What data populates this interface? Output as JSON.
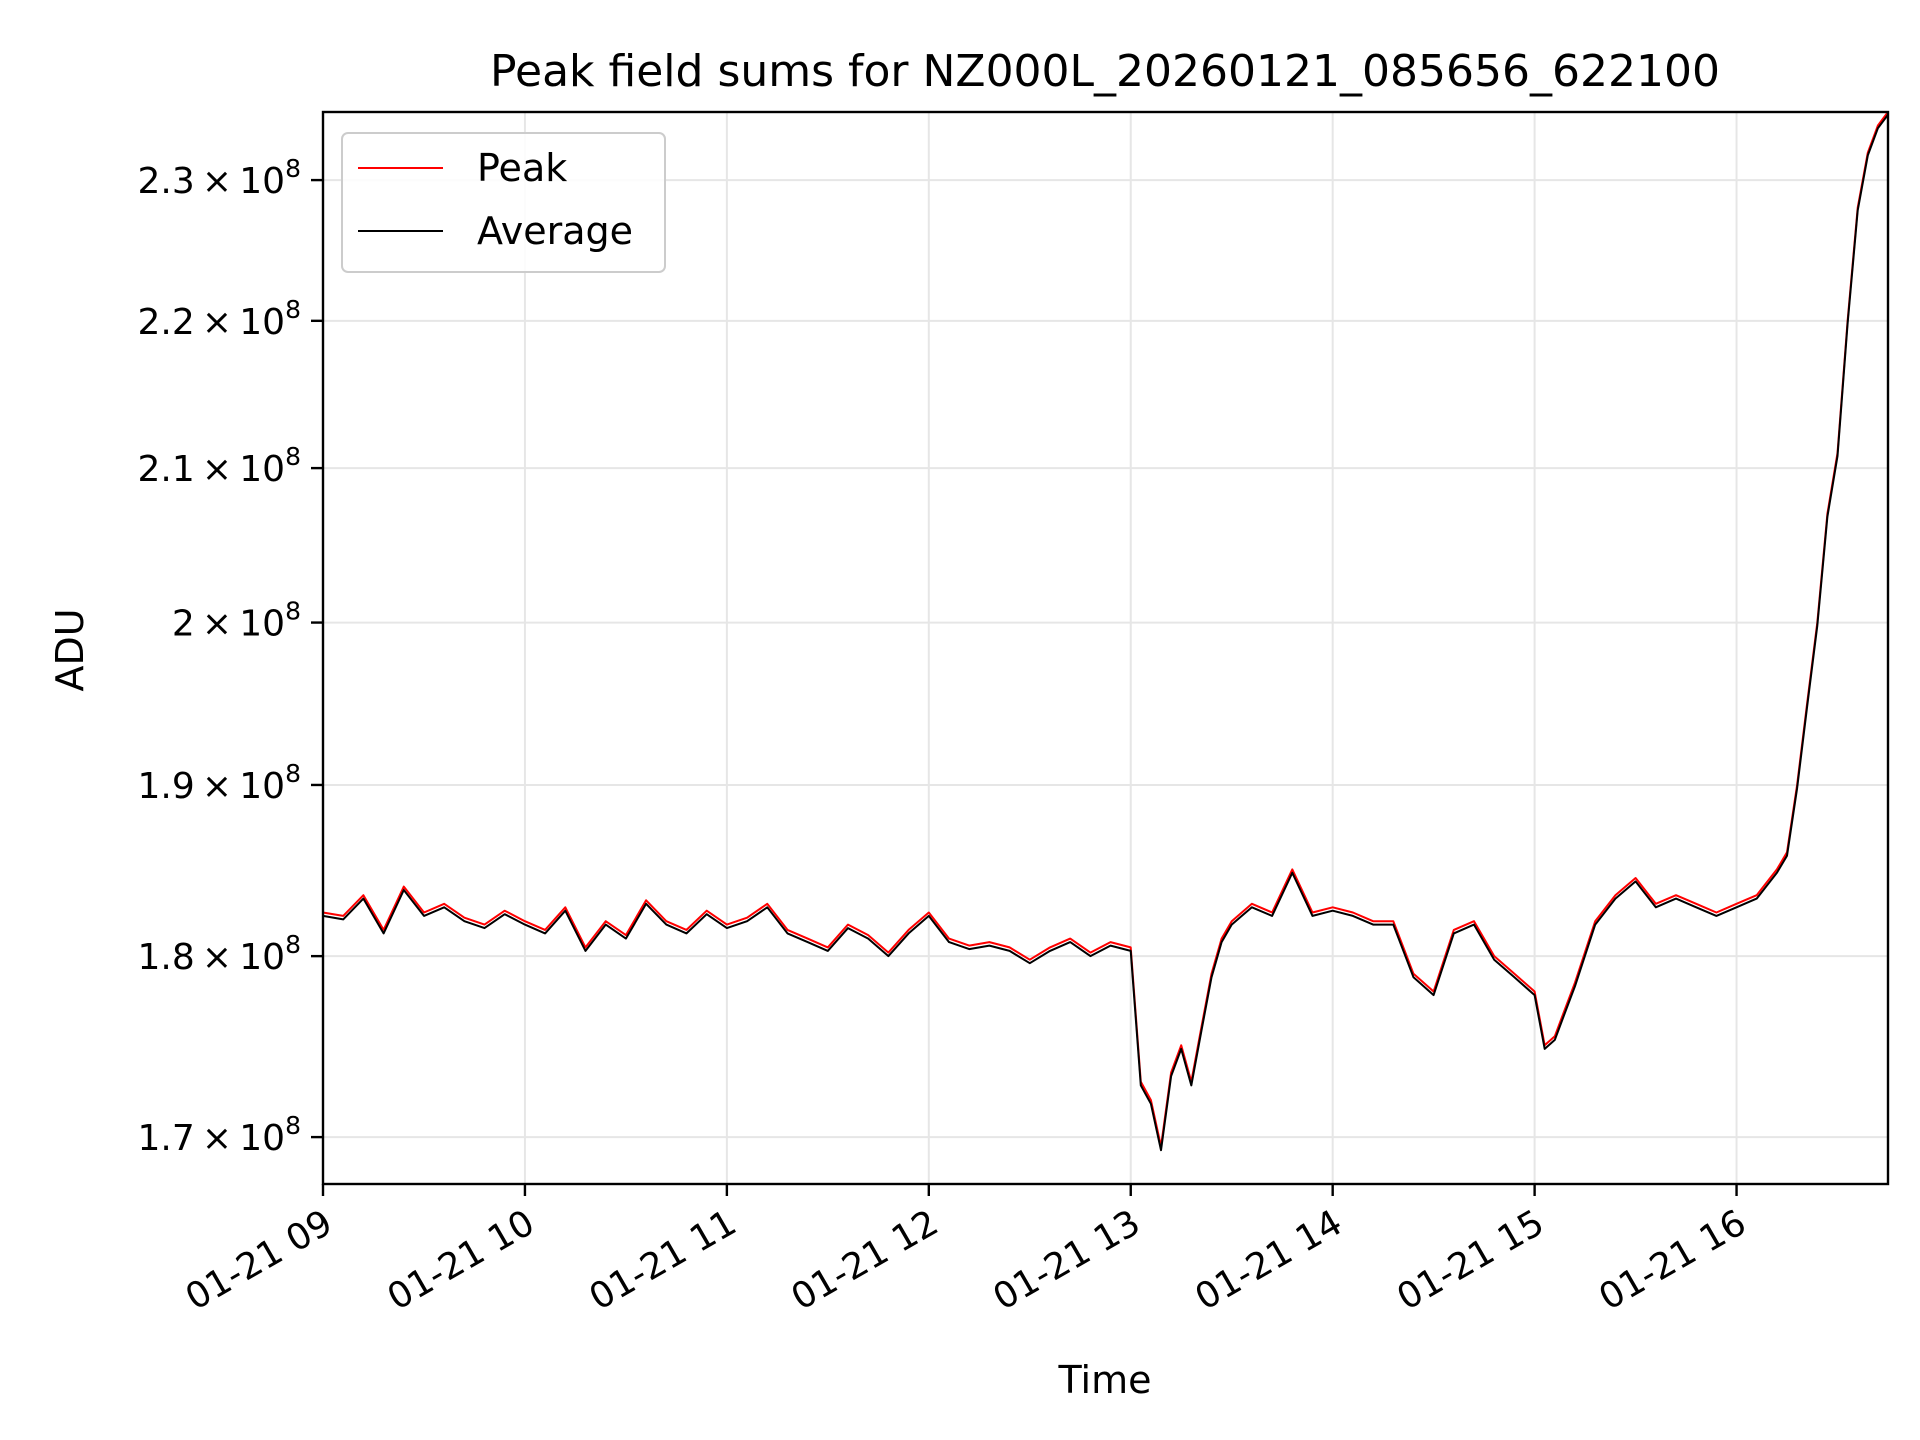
{
  "chart_data": {
    "type": "line",
    "title": "Peak field sums for NZ000L_20260121_085656_622100",
    "xlabel": "Time",
    "ylabel": "ADU",
    "y_scale": "log",
    "x_range": [
      "2026-01-21 09:00",
      "2026-01-21 16:45"
    ],
    "ylim": [
      167500000,
      235000000
    ],
    "x_ticks": [
      {
        "value": "2026-01-21 09:00",
        "label": "01-21 09"
      },
      {
        "value": "2026-01-21 10:00",
        "label": "01-21 10"
      },
      {
        "value": "2026-01-21 11:00",
        "label": "01-21 11"
      },
      {
        "value": "2026-01-21 12:00",
        "label": "01-21 12"
      },
      {
        "value": "2026-01-21 13:00",
        "label": "01-21 13"
      },
      {
        "value": "2026-01-21 14:00",
        "label": "01-21 14"
      },
      {
        "value": "2026-01-21 15:00",
        "label": "01-21 15"
      },
      {
        "value": "2026-01-21 16:00",
        "label": "01-21 16"
      }
    ],
    "y_ticks": [
      {
        "value": 170000000,
        "mantissa": "1.7",
        "exponent": "8"
      },
      {
        "value": 180000000,
        "mantissa": "1.8",
        "exponent": "8"
      },
      {
        "value": 190000000,
        "mantissa": "1.9",
        "exponent": "8"
      },
      {
        "value": 200000000,
        "mantissa": "2",
        "exponent": "8"
      },
      {
        "value": 210000000,
        "mantissa": "2.1",
        "exponent": "8"
      },
      {
        "value": 220000000,
        "mantissa": "2.2",
        "exponent": "8"
      },
      {
        "value": 230000000,
        "mantissa": "2.3",
        "exponent": "8"
      }
    ],
    "times_symbol": "×",
    "ytick_base": "10",
    "grid": true,
    "legend": {
      "position": "top-left",
      "entries": [
        "Peak",
        "Average"
      ]
    },
    "colors": {
      "Peak": "#ff0000",
      "Average": "#000000",
      "grid": "#e6e6e6"
    },
    "x": [
      "2026-01-21 09:00",
      "2026-01-21 09:06",
      "2026-01-21 09:12",
      "2026-01-21 09:18",
      "2026-01-21 09:24",
      "2026-01-21 09:30",
      "2026-01-21 09:36",
      "2026-01-21 09:42",
      "2026-01-21 09:48",
      "2026-01-21 09:54",
      "2026-01-21 10:00",
      "2026-01-21 10:06",
      "2026-01-21 10:12",
      "2026-01-21 10:18",
      "2026-01-21 10:24",
      "2026-01-21 10:30",
      "2026-01-21 10:36",
      "2026-01-21 10:42",
      "2026-01-21 10:48",
      "2026-01-21 10:54",
      "2026-01-21 11:00",
      "2026-01-21 11:06",
      "2026-01-21 11:12",
      "2026-01-21 11:18",
      "2026-01-21 11:24",
      "2026-01-21 11:30",
      "2026-01-21 11:36",
      "2026-01-21 11:42",
      "2026-01-21 11:48",
      "2026-01-21 11:54",
      "2026-01-21 12:00",
      "2026-01-21 12:06",
      "2026-01-21 12:12",
      "2026-01-21 12:18",
      "2026-01-21 12:24",
      "2026-01-21 12:30",
      "2026-01-21 12:36",
      "2026-01-21 12:42",
      "2026-01-21 12:48",
      "2026-01-21 12:54",
      "2026-01-21 13:00",
      "2026-01-21 13:03",
      "2026-01-21 13:06",
      "2026-01-21 13:09",
      "2026-01-21 13:12",
      "2026-01-21 13:15",
      "2026-01-21 13:18",
      "2026-01-21 13:21",
      "2026-01-21 13:24",
      "2026-01-21 13:27",
      "2026-01-21 13:30",
      "2026-01-21 13:33",
      "2026-01-21 13:36",
      "2026-01-21 13:42",
      "2026-01-21 13:48",
      "2026-01-21 13:54",
      "2026-01-21 14:00",
      "2026-01-21 14:06",
      "2026-01-21 14:12",
      "2026-01-21 14:18",
      "2026-01-21 14:24",
      "2026-01-21 14:30",
      "2026-01-21 14:36",
      "2026-01-21 14:42",
      "2026-01-21 14:48",
      "2026-01-21 14:54",
      "2026-01-21 15:00",
      "2026-01-21 15:03",
      "2026-01-21 15:06",
      "2026-01-21 15:09",
      "2026-01-21 15:12",
      "2026-01-21 15:18",
      "2026-01-21 15:24",
      "2026-01-21 15:30",
      "2026-01-21 15:36",
      "2026-01-21 15:42",
      "2026-01-21 15:48",
      "2026-01-21 15:54",
      "2026-01-21 16:00",
      "2026-01-21 16:06",
      "2026-01-21 16:12",
      "2026-01-21 16:15",
      "2026-01-21 16:18",
      "2026-01-21 16:21",
      "2026-01-21 16:24",
      "2026-01-21 16:27",
      "2026-01-21 16:30",
      "2026-01-21 16:33",
      "2026-01-21 16:36",
      "2026-01-21 16:39",
      "2026-01-21 16:42",
      "2026-01-21 16:45"
    ],
    "series": [
      {
        "name": "Peak",
        "values": [
          182500000,
          182300000,
          183500000,
          181500000,
          184000000,
          182500000,
          183000000,
          182200000,
          181800000,
          182600000,
          182000000,
          181500000,
          182800000,
          180500000,
          182000000,
          181200000,
          183200000,
          182000000,
          181500000,
          182600000,
          181800000,
          182200000,
          183000000,
          181500000,
          181000000,
          180500000,
          181800000,
          181200000,
          180200000,
          181500000,
          182500000,
          181000000,
          180600000,
          180800000,
          180500000,
          179800000,
          180500000,
          181000000,
          180200000,
          180800000,
          180500000,
          173000000,
          172000000,
          169500000,
          173500000,
          175000000,
          173000000,
          176000000,
          179000000,
          181000000,
          182000000,
          182500000,
          183000000,
          182500000,
          185000000,
          182500000,
          182800000,
          182500000,
          182000000,
          182000000,
          179000000,
          178000000,
          181500000,
          182000000,
          180000000,
          179000000,
          178000000,
          175000000,
          175500000,
          177000000,
          178500000,
          182000000,
          183500000,
          184500000,
          183000000,
          183500000,
          183000000,
          182500000,
          183000000,
          183500000,
          185000000,
          186000000,
          190000000,
          195000000,
          200000000,
          207000000,
          211000000,
          220000000,
          228000000,
          232000000,
          234000000,
          235000000
        ]
      },
      {
        "name": "Average",
        "values": [
          182300000,
          182100000,
          183300000,
          181300000,
          183800000,
          182300000,
          182800000,
          182000000,
          181600000,
          182400000,
          181800000,
          181300000,
          182600000,
          180300000,
          181800000,
          181000000,
          183000000,
          181800000,
          181300000,
          182400000,
          181600000,
          182000000,
          182800000,
          181300000,
          180800000,
          180300000,
          181600000,
          181000000,
          180000000,
          181300000,
          182300000,
          180800000,
          180400000,
          180600000,
          180300000,
          179600000,
          180300000,
          180800000,
          180000000,
          180600000,
          180300000,
          172800000,
          171800000,
          169300000,
          173300000,
          174800000,
          172800000,
          175800000,
          178800000,
          180800000,
          181800000,
          182300000,
          182800000,
          182300000,
          184800000,
          182300000,
          182600000,
          182300000,
          181800000,
          181800000,
          178800000,
          177800000,
          181300000,
          181800000,
          179800000,
          178800000,
          177800000,
          174800000,
          175300000,
          176800000,
          178300000,
          181800000,
          183300000,
          184300000,
          182800000,
          183300000,
          182800000,
          182300000,
          182800000,
          183300000,
          184800000,
          185800000,
          189800000,
          194800000,
          199800000,
          206800000,
          210800000,
          219800000,
          227800000,
          231800000,
          233800000,
          234800000
        ]
      }
    ]
  }
}
